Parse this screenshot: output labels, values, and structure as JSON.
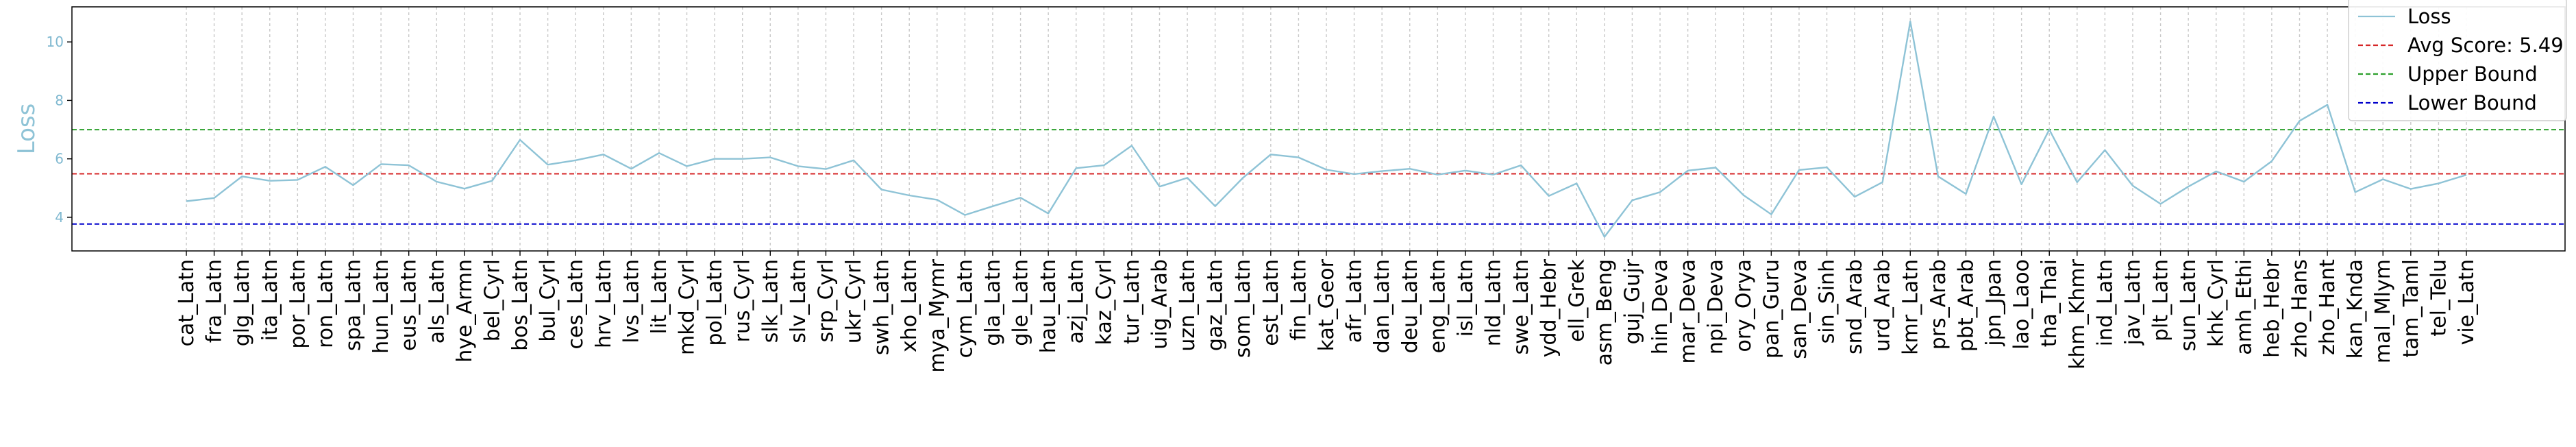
{
  "chart_data": {
    "type": "line",
    "ylabel": "Loss",
    "xlabel": "",
    "title": "",
    "ylim": [
      2.85,
      11.2
    ],
    "yticks": [
      4,
      6,
      8,
      10
    ],
    "grid": {
      "x": true,
      "y": false
    },
    "legend_position": "top-right",
    "categories": [
      "cat_Latn",
      "fra_Latn",
      "glg_Latn",
      "ita_Latn",
      "por_Latn",
      "ron_Latn",
      "spa_Latn",
      "hun_Latn",
      "eus_Latn",
      "als_Latn",
      "hye_Armn",
      "bel_Cyrl",
      "bos_Latn",
      "bul_Cyrl",
      "ces_Latn",
      "hrv_Latn",
      "lvs_Latn",
      "lit_Latn",
      "mkd_Cyrl",
      "pol_Latn",
      "rus_Cyrl",
      "slk_Latn",
      "slv_Latn",
      "srp_Cyrl",
      "ukr_Cyrl",
      "swh_Latn",
      "xho_Latn",
      "mya_Mymr",
      "cym_Latn",
      "gla_Latn",
      "gle_Latn",
      "hau_Latn",
      "azj_Latn",
      "kaz_Cyrl",
      "tur_Latn",
      "uig_Arab",
      "uzn_Latn",
      "gaz_Latn",
      "som_Latn",
      "est_Latn",
      "fin_Latn",
      "kat_Geor",
      "afr_Latn",
      "dan_Latn",
      "deu_Latn",
      "eng_Latn",
      "isl_Latn",
      "nld_Latn",
      "swe_Latn",
      "ydd_Hebr",
      "ell_Grek",
      "asm_Beng",
      "guj_Gujr",
      "hin_Deva",
      "mar_Deva",
      "npi_Deva",
      "ory_Orya",
      "pan_Guru",
      "san_Deva",
      "sin_Sinh",
      "snd_Arab",
      "urd_Arab",
      "kmr_Latn",
      "prs_Arab",
      "pbt_Arab",
      "jpn_Jpan",
      "lao_Laoo",
      "tha_Thai",
      "khm_Khmr",
      "ind_Latn",
      "jav_Latn",
      "plt_Latn",
      "sun_Latn",
      "khk_Cyrl",
      "amh_Ethi",
      "heb_Hebr",
      "zho_Hans",
      "zho_Hant",
      "kan_Knda",
      "mal_Mlym",
      "tam_Taml",
      "tel_Telu",
      "vie_Latn"
    ],
    "series": [
      {
        "name": "Loss",
        "color": "#8ec3d6",
        "values": [
          4.55,
          4.66,
          5.4,
          5.25,
          5.28,
          5.73,
          5.1,
          5.82,
          5.78,
          5.22,
          4.98,
          5.25,
          6.65,
          5.8,
          5.95,
          6.15,
          5.66,
          6.2,
          5.75,
          6.0,
          6.0,
          6.05,
          5.75,
          5.65,
          5.95,
          4.95,
          4.75,
          4.6,
          4.08,
          4.38,
          4.67,
          4.13,
          5.68,
          5.78,
          6.45,
          5.05,
          5.35,
          4.38,
          5.35,
          6.15,
          6.05,
          5.63,
          5.48,
          5.58,
          5.66,
          5.46,
          5.6,
          5.46,
          5.78,
          4.73,
          5.16,
          3.33,
          4.58,
          4.86,
          5.6,
          5.7,
          4.76,
          4.1,
          5.62,
          5.71,
          4.7,
          5.2,
          10.7,
          5.4,
          4.8,
          7.45,
          5.13,
          7.0,
          5.2,
          6.3,
          5.08,
          4.46,
          5.05,
          5.57,
          5.22,
          5.92,
          7.3,
          7.85,
          4.86,
          5.3,
          4.97,
          5.16,
          5.45
        ]
      }
    ],
    "reference_lines": [
      {
        "name": "Avg Score: 5.49",
        "value": 5.49,
        "color": "#d62728",
        "style": "dashed"
      },
      {
        "name": "Upper Bound",
        "value": 7.0,
        "color": "#2ca02c",
        "style": "dashed"
      },
      {
        "name": "Lower Bound",
        "value": 3.77,
        "color": "#0000cc",
        "style": "dashed"
      }
    ]
  }
}
